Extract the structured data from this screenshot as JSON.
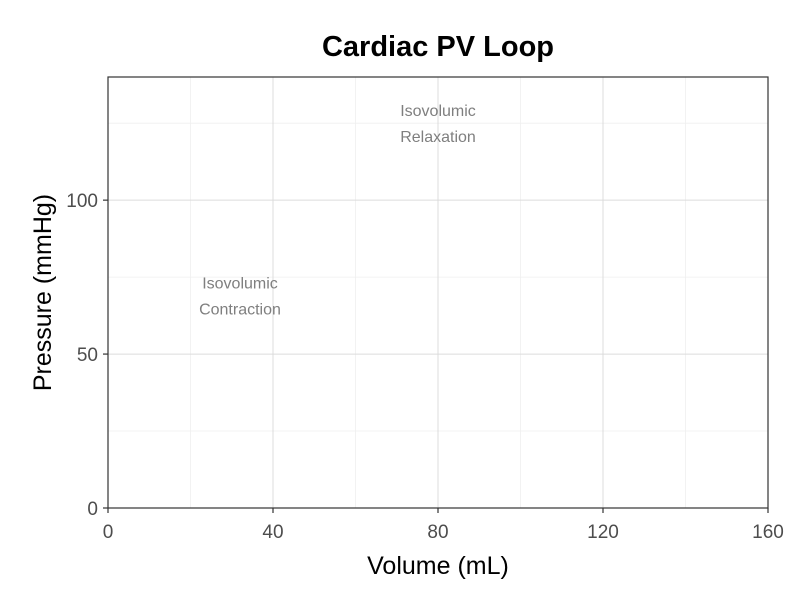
{
  "chart_data": {
    "type": "line",
    "title": "Cardiac PV Loop",
    "xlabel": "Volume (mL)",
    "ylabel": "Pressure (mmHg)",
    "xlim": [
      0,
      160
    ],
    "ylim": [
      0,
      140
    ],
    "x_ticks": [
      0,
      40,
      80,
      120,
      160
    ],
    "x_tick_labels": [
      "0",
      "40",
      "80",
      "120",
      "160"
    ],
    "y_ticks": [
      0,
      50,
      100
    ],
    "y_tick_labels": [
      "0",
      "50",
      "100"
    ],
    "grid": true,
    "series": [],
    "annotations": [
      {
        "lines": [
          "Isovolumic",
          "Relaxation"
        ],
        "x": 80,
        "y": 125
      },
      {
        "lines": [
          "Isovolumic",
          "Contraction"
        ],
        "x": 32,
        "y": 69
      }
    ]
  }
}
